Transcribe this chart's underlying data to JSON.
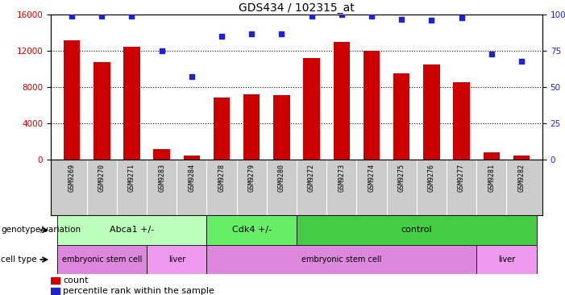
{
  "title": "GDS434 / 102315_at",
  "samples": [
    "GSM9269",
    "GSM9270",
    "GSM9271",
    "GSM9283",
    "GSM9284",
    "GSM9278",
    "GSM9279",
    "GSM9280",
    "GSM9272",
    "GSM9273",
    "GSM9274",
    "GSM9275",
    "GSM9276",
    "GSM9277",
    "GSM9281",
    "GSM9282"
  ],
  "counts": [
    13200,
    10800,
    12500,
    1100,
    400,
    6800,
    7200,
    7100,
    11200,
    13000,
    12000,
    9500,
    10500,
    8500,
    800,
    400
  ],
  "percentiles": [
    99,
    99,
    99,
    75,
    57,
    85,
    87,
    87,
    99,
    100,
    99,
    97,
    96,
    98,
    73,
    68
  ],
  "ylim_left": [
    0,
    16000
  ],
  "ylim_right": [
    0,
    100
  ],
  "yticks_left": [
    0,
    4000,
    8000,
    12000,
    16000
  ],
  "yticks_right": [
    0,
    25,
    50,
    75,
    100
  ],
  "bar_color": "#cc0000",
  "dot_color": "#2222cc",
  "genotype_groups": [
    {
      "label": "Abca1 +/-",
      "start": 0,
      "end": 5,
      "color": "#bbffbb"
    },
    {
      "label": "Cdk4 +/-",
      "start": 5,
      "end": 8,
      "color": "#66ee66"
    },
    {
      "label": "control",
      "start": 8,
      "end": 16,
      "color": "#44cc44"
    }
  ],
  "celltype_groups": [
    {
      "label": "embryonic stem cell",
      "start": 0,
      "end": 3,
      "color": "#dd88dd"
    },
    {
      "label": "liver",
      "start": 3,
      "end": 5,
      "color": "#ee99ee"
    },
    {
      "label": "embryonic stem cell",
      "start": 5,
      "end": 14,
      "color": "#dd88dd"
    },
    {
      "label": "liver",
      "start": 14,
      "end": 16,
      "color": "#ee99ee"
    }
  ],
  "legend_count_label": "count",
  "legend_pct_label": "percentile rank within the sample",
  "xlabel_genotype": "genotype/variation",
  "xlabel_celltype": "cell type",
  "background_color": "#ffffff",
  "plot_bg_color": "#ffffff",
  "names_bg_color": "#cccccc"
}
